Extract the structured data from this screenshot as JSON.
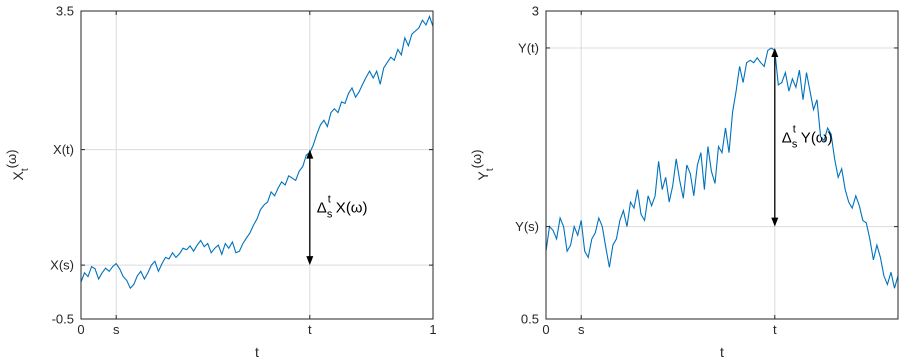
{
  "chart_data": [
    {
      "type": "line",
      "title": "",
      "xlabel": "t",
      "ylabel_main": "X",
      "ylabel_sub": "t",
      "ylabel_paren": "(ω)",
      "xlim": [
        0,
        1
      ],
      "ylim": [
        -0.5,
        3.5
      ],
      "grid": "on",
      "color": "#0072BD",
      "xticks": [
        {
          "value": 0,
          "label": "0"
        },
        {
          "value": 0.1,
          "label": "s"
        },
        {
          "value": 0.65,
          "label": "t"
        },
        {
          "value": 1,
          "label": "1"
        }
      ],
      "yticks": [
        {
          "value": -0.5,
          "label": "-0.5"
        },
        {
          "value": 0.2,
          "label": "X(s)"
        },
        {
          "value": 1.7,
          "label": "X(t)"
        },
        {
          "value": 3.5,
          "label": "3.5"
        }
      ],
      "annotation": {
        "x": 0.65,
        "y_from": 1.7,
        "y_to": 0.2,
        "delta": "Δ",
        "sub": "s",
        "sup": "t",
        "body": "X",
        "paren": "(ω)"
      },
      "series": [
        {
          "x": [
            0,
            0.01,
            0.02,
            0.03,
            0.04,
            0.05,
            0.06,
            0.07,
            0.08,
            0.09,
            0.1,
            0.11,
            0.12,
            0.13,
            0.14,
            0.15,
            0.16,
            0.17,
            0.18,
            0.19,
            0.2,
            0.21,
            0.22,
            0.23,
            0.24,
            0.25,
            0.26,
            0.27,
            0.28,
            0.29,
            0.3,
            0.31,
            0.32,
            0.33,
            0.34,
            0.35,
            0.36,
            0.37,
            0.38,
            0.39,
            0.4,
            0.41,
            0.42,
            0.43,
            0.44,
            0.45,
            0.46,
            0.47,
            0.48,
            0.49,
            0.5,
            0.51,
            0.52,
            0.53,
            0.54,
            0.55,
            0.56,
            0.57,
            0.58,
            0.59,
            0.6,
            0.61,
            0.62,
            0.63,
            0.64,
            0.65,
            0.66,
            0.67,
            0.68,
            0.69,
            0.7,
            0.71,
            0.72,
            0.73,
            0.74,
            0.75,
            0.76,
            0.77,
            0.78,
            0.79,
            0.8,
            0.81,
            0.82,
            0.83,
            0.84,
            0.85,
            0.86,
            0.87,
            0.88,
            0.89,
            0.9,
            0.91,
            0.92,
            0.93,
            0.94,
            0.95,
            0.96,
            0.97,
            0.98,
            0.99,
            1
          ],
          "y": [
            -0.02,
            0.1,
            0.05,
            0.18,
            0.15,
            0.02,
            0.1,
            0.16,
            0.12,
            0.18,
            0.22,
            0.15,
            0.05,
            0.0,
            -0.1,
            -0.05,
            0.06,
            0.12,
            0.02,
            0.1,
            0.2,
            0.25,
            0.12,
            0.22,
            0.3,
            0.28,
            0.36,
            0.3,
            0.35,
            0.42,
            0.4,
            0.45,
            0.38,
            0.46,
            0.52,
            0.44,
            0.48,
            0.36,
            0.42,
            0.46,
            0.34,
            0.48,
            0.42,
            0.5,
            0.36,
            0.38,
            0.48,
            0.55,
            0.62,
            0.72,
            0.8,
            0.92,
            0.98,
            1.02,
            1.15,
            1.1,
            1.2,
            1.28,
            1.24,
            1.36,
            1.33,
            1.3,
            1.42,
            1.48,
            1.63,
            1.66,
            1.76,
            1.9,
            2.02,
            2.08,
            2.0,
            2.18,
            2.23,
            2.18,
            2.32,
            2.3,
            2.43,
            2.5,
            2.38,
            2.45,
            2.55,
            2.64,
            2.72,
            2.63,
            2.72,
            2.55,
            2.76,
            2.83,
            2.9,
            2.86,
            3.0,
            2.93,
            3.15,
            3.05,
            3.2,
            3.24,
            3.28,
            3.38,
            3.32,
            3.43,
            3.3
          ]
        }
      ]
    },
    {
      "type": "line",
      "title": "",
      "xlabel": "t",
      "ylabel_main": "Y",
      "ylabel_sub": "t",
      "ylabel_paren": "(ω)",
      "xlim": [
        0,
        1
      ],
      "ylim": [
        0.5,
        3
      ],
      "grid": "on",
      "color": "#0072BD",
      "xticks": [
        {
          "value": 0,
          "label": "0"
        },
        {
          "value": 0.1,
          "label": "s"
        },
        {
          "value": 0.65,
          "label": "t"
        },
        {
          "value": 1,
          "label": ""
        }
      ],
      "yticks": [
        {
          "value": 0.5,
          "label": "0.5"
        },
        {
          "value": 1.25,
          "label": "Y(s)"
        },
        {
          "value": 2.7,
          "label": "Y(t)"
        },
        {
          "value": 3,
          "label": "3"
        }
      ],
      "annotation": {
        "x": 0.65,
        "y_from": 2.7,
        "y_to": 1.25,
        "delta": "Δ",
        "sub": "s",
        "sup": "t",
        "body": "Y",
        "paren": "(ω)"
      },
      "series": [
        {
          "x": [
            0,
            0.01,
            0.02,
            0.03,
            0.04,
            0.05,
            0.06,
            0.07,
            0.08,
            0.09,
            0.1,
            0.11,
            0.12,
            0.13,
            0.14,
            0.15,
            0.16,
            0.17,
            0.18,
            0.19,
            0.2,
            0.21,
            0.22,
            0.23,
            0.24,
            0.25,
            0.26,
            0.27,
            0.28,
            0.29,
            0.3,
            0.31,
            0.32,
            0.33,
            0.34,
            0.35,
            0.36,
            0.37,
            0.38,
            0.39,
            0.4,
            0.41,
            0.42,
            0.43,
            0.44,
            0.45,
            0.46,
            0.47,
            0.48,
            0.49,
            0.5,
            0.51,
            0.52,
            0.53,
            0.54,
            0.55,
            0.56,
            0.57,
            0.58,
            0.59,
            0.6,
            0.61,
            0.62,
            0.63,
            0.64,
            0.65,
            0.66,
            0.67,
            0.68,
            0.69,
            0.7,
            0.71,
            0.72,
            0.73,
            0.74,
            0.75,
            0.76,
            0.77,
            0.78,
            0.79,
            0.8,
            0.81,
            0.82,
            0.83,
            0.84,
            0.85,
            0.86,
            0.87,
            0.88,
            0.89,
            0.9,
            0.91,
            0.92,
            0.93,
            0.94,
            0.95,
            0.96,
            0.97,
            0.98,
            0.99,
            1
          ],
          "y": [
            1.05,
            1.25,
            1.22,
            1.15,
            1.32,
            1.25,
            1.05,
            1.1,
            1.25,
            1.18,
            1.3,
            1.05,
            1.0,
            1.15,
            1.2,
            1.32,
            1.25,
            1.08,
            0.92,
            1.1,
            1.15,
            1.3,
            1.38,
            1.25,
            1.45,
            1.4,
            1.55,
            1.35,
            1.3,
            1.5,
            1.42,
            1.5,
            1.78,
            1.55,
            1.65,
            1.45,
            1.58,
            1.8,
            1.62,
            1.48,
            1.75,
            1.68,
            1.5,
            1.75,
            1.85,
            1.55,
            1.9,
            1.7,
            1.6,
            1.9,
            1.85,
            2.05,
            1.85,
            2.18,
            2.35,
            2.55,
            2.42,
            2.58,
            2.6,
            2.58,
            2.62,
            2.58,
            2.55,
            2.68,
            2.7,
            2.68,
            2.4,
            2.42,
            2.5,
            2.35,
            2.45,
            2.38,
            2.52,
            2.28,
            2.5,
            2.35,
            2.2,
            2.28,
            1.98,
            1.95,
            2.05,
            2.0,
            1.8,
            1.65,
            1.72,
            1.55,
            1.45,
            1.4,
            1.5,
            1.42,
            1.3,
            1.28,
            1.15,
            0.98,
            1.1,
            1.0,
            0.85,
            0.78,
            0.88,
            0.75,
            0.85
          ]
        }
      ]
    }
  ]
}
